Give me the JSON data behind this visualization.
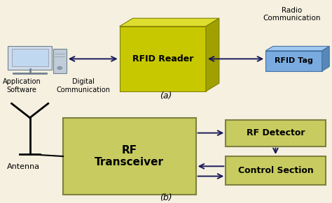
{
  "bg_color": "#f5f0e0",
  "rfid_reader_front": "#c8c800",
  "rfid_reader_top": "#dede30",
  "rfid_reader_right": "#a0a000",
  "rfid_reader_edge": "#808000",
  "rfid_reader_label": "RFID Reader",
  "rfid_tag_front": "#7aabe0",
  "rfid_tag_top": "#a0c8f0",
  "rfid_tag_right": "#5888b8",
  "rfid_tag_edge": "#4070a0",
  "rfid_tag_label": "RFID Tag",
  "rf_transceiver_color": "#c8cc60",
  "rf_transceiver_edge": "#808040",
  "rf_transceiver_label": "RF\nTransceiver",
  "rf_detector_color": "#c8cc60",
  "rf_detector_edge": "#808040",
  "rf_detector_label": "RF Detector",
  "control_section_color": "#c8cc60",
  "control_section_edge": "#808040",
  "control_section_label": "Control Section",
  "label_a": "(a)",
  "label_b": "(b)",
  "text_radio_comm": "Radio\nCommunication",
  "text_digital_comm": "Digital\nCommunication",
  "text_app_software": "Application\nSoftware",
  "text_antenna": "Antenna",
  "arrow_color": "#1a1a5a"
}
